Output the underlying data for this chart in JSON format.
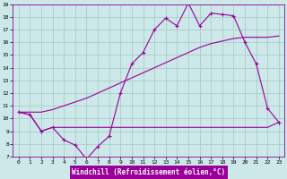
{
  "xlabel": "Windchill (Refroidissement éolien,°C)",
  "bg_color": "#cce8e8",
  "grid_color": "#aacccc",
  "line_color": "#990099",
  "label_bg": "#990099",
  "label_fg": "#ffffff",
  "xlim": [
    -0.5,
    23.5
  ],
  "ylim": [
    7,
    19
  ],
  "xticks": [
    0,
    1,
    2,
    3,
    4,
    5,
    6,
    7,
    8,
    9,
    10,
    11,
    12,
    13,
    14,
    15,
    16,
    17,
    18,
    19,
    20,
    21,
    22,
    23
  ],
  "yticks": [
    7,
    8,
    9,
    10,
    11,
    12,
    13,
    14,
    15,
    16,
    17,
    18,
    19
  ],
  "line1_x": [
    0,
    1,
    2,
    3,
    4,
    5,
    6,
    7,
    8,
    9,
    10,
    11,
    12,
    13,
    14,
    15,
    16,
    17,
    18,
    19,
    20,
    21,
    22,
    23
  ],
  "line1_y": [
    10.5,
    10.3,
    9.0,
    9.3,
    8.3,
    7.9,
    6.8,
    7.8,
    8.6,
    12.0,
    14.3,
    15.2,
    17.0,
    17.9,
    17.3,
    19.1,
    17.3,
    18.3,
    18.2,
    18.1,
    16.0,
    14.3,
    10.8,
    9.7
  ],
  "line2_x": [
    0,
    1,
    2,
    3,
    4,
    5,
    6,
    7,
    8,
    9,
    10,
    11,
    12,
    13,
    14,
    15,
    16,
    17,
    18,
    19,
    20,
    21,
    22,
    23
  ],
  "line2_y": [
    10.5,
    10.5,
    10.5,
    10.7,
    11.0,
    11.3,
    11.6,
    12.0,
    12.4,
    12.8,
    13.2,
    13.6,
    14.0,
    14.4,
    14.8,
    15.2,
    15.6,
    15.9,
    16.1,
    16.3,
    16.4,
    16.4,
    16.4,
    16.5
  ],
  "line3_x": [
    0,
    1,
    2,
    3,
    4,
    5,
    6,
    7,
    8,
    9,
    10,
    11,
    12,
    13,
    14,
    15,
    16,
    17,
    18,
    19,
    20,
    21,
    22,
    23
  ],
  "line3_y": [
    10.5,
    10.3,
    9.0,
    9.3,
    9.3,
    9.3,
    9.3,
    9.3,
    9.3,
    9.3,
    9.3,
    9.3,
    9.3,
    9.3,
    9.3,
    9.3,
    9.3,
    9.3,
    9.3,
    9.3,
    9.3,
    9.3,
    9.3,
    9.7
  ]
}
